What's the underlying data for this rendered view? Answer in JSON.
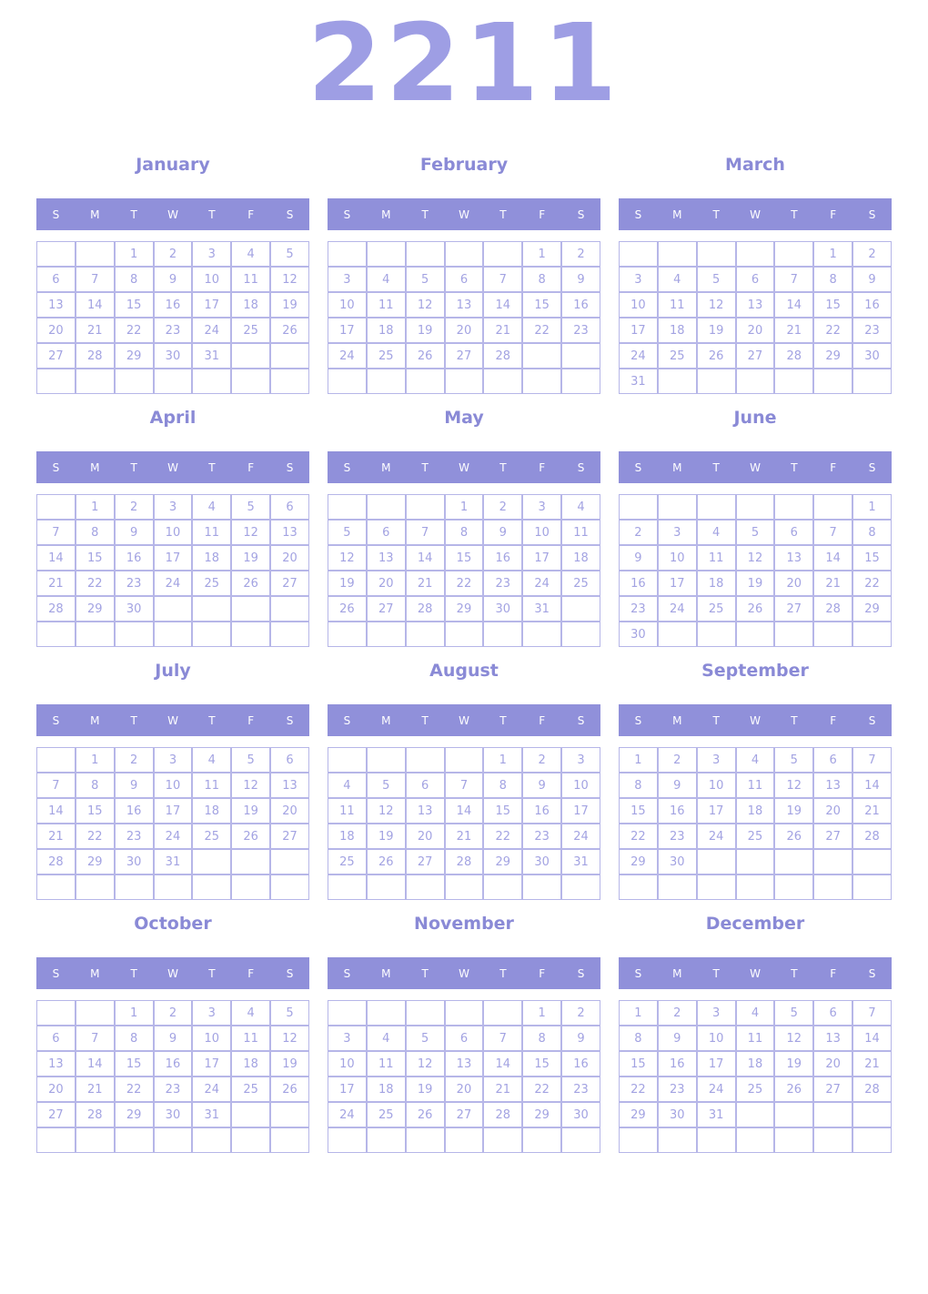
{
  "year_title": "2211",
  "colors": {
    "year_text": "#9e9ee4",
    "month_title": "#8a8ad6",
    "header_bg": "#9090da",
    "header_text": "#ffffff",
    "date_text": "#a3a3e2",
    "border": "#b6b6e8"
  },
  "day_headers": [
    "S",
    "M",
    "T",
    "W",
    "T",
    "F",
    "S"
  ],
  "months": [
    {
      "name": "January",
      "weeks": [
        [
          "",
          "",
          "1",
          "2",
          "3",
          "4",
          "5"
        ],
        [
          "6",
          "7",
          "8",
          "9",
          "10",
          "11",
          "12"
        ],
        [
          "13",
          "14",
          "15",
          "16",
          "17",
          "18",
          "19"
        ],
        [
          "20",
          "21",
          "22",
          "23",
          "24",
          "25",
          "26"
        ],
        [
          "27",
          "28",
          "29",
          "30",
          "31",
          "",
          ""
        ],
        [
          "",
          "",
          "",
          "",
          "",
          "",
          ""
        ]
      ]
    },
    {
      "name": "February",
      "weeks": [
        [
          "",
          "",
          "",
          "",
          "",
          "1",
          "2"
        ],
        [
          "3",
          "4",
          "5",
          "6",
          "7",
          "8",
          "9"
        ],
        [
          "10",
          "11",
          "12",
          "13",
          "14",
          "15",
          "16"
        ],
        [
          "17",
          "18",
          "19",
          "20",
          "21",
          "22",
          "23"
        ],
        [
          "24",
          "25",
          "26",
          "27",
          "28",
          "",
          ""
        ],
        [
          "",
          "",
          "",
          "",
          "",
          "",
          ""
        ]
      ]
    },
    {
      "name": "March",
      "weeks": [
        [
          "",
          "",
          "",
          "",
          "",
          "1",
          "2"
        ],
        [
          "3",
          "4",
          "5",
          "6",
          "7",
          "8",
          "9"
        ],
        [
          "10",
          "11",
          "12",
          "13",
          "14",
          "15",
          "16"
        ],
        [
          "17",
          "18",
          "19",
          "20",
          "21",
          "22",
          "23"
        ],
        [
          "24",
          "25",
          "26",
          "27",
          "28",
          "29",
          "30"
        ],
        [
          "31",
          "",
          "",
          "",
          "",
          "",
          ""
        ]
      ]
    },
    {
      "name": "April",
      "weeks": [
        [
          "",
          "1",
          "2",
          "3",
          "4",
          "5",
          "6"
        ],
        [
          "7",
          "8",
          "9",
          "10",
          "11",
          "12",
          "13"
        ],
        [
          "14",
          "15",
          "16",
          "17",
          "18",
          "19",
          "20"
        ],
        [
          "21",
          "22",
          "23",
          "24",
          "25",
          "26",
          "27"
        ],
        [
          "28",
          "29",
          "30",
          "",
          "",
          "",
          ""
        ],
        [
          "",
          "",
          "",
          "",
          "",
          "",
          ""
        ]
      ]
    },
    {
      "name": "May",
      "weeks": [
        [
          "",
          "",
          "",
          "1",
          "2",
          "3",
          "4"
        ],
        [
          "5",
          "6",
          "7",
          "8",
          "9",
          "10",
          "11"
        ],
        [
          "12",
          "13",
          "14",
          "15",
          "16",
          "17",
          "18"
        ],
        [
          "19",
          "20",
          "21",
          "22",
          "23",
          "24",
          "25"
        ],
        [
          "26",
          "27",
          "28",
          "29",
          "30",
          "31",
          ""
        ],
        [
          "",
          "",
          "",
          "",
          "",
          "",
          ""
        ]
      ]
    },
    {
      "name": "June",
      "weeks": [
        [
          "",
          "",
          "",
          "",
          "",
          "",
          "1"
        ],
        [
          "2",
          "3",
          "4",
          "5",
          "6",
          "7",
          "8"
        ],
        [
          "9",
          "10",
          "11",
          "12",
          "13",
          "14",
          "15"
        ],
        [
          "16",
          "17",
          "18",
          "19",
          "20",
          "21",
          "22"
        ],
        [
          "23",
          "24",
          "25",
          "26",
          "27",
          "28",
          "29"
        ],
        [
          "30",
          "",
          "",
          "",
          "",
          "",
          ""
        ]
      ]
    },
    {
      "name": "July",
      "weeks": [
        [
          "",
          "1",
          "2",
          "3",
          "4",
          "5",
          "6"
        ],
        [
          "7",
          "8",
          "9",
          "10",
          "11",
          "12",
          "13"
        ],
        [
          "14",
          "15",
          "16",
          "17",
          "18",
          "19",
          "20"
        ],
        [
          "21",
          "22",
          "23",
          "24",
          "25",
          "26",
          "27"
        ],
        [
          "28",
          "29",
          "30",
          "31",
          "",
          "",
          ""
        ],
        [
          "",
          "",
          "",
          "",
          "",
          "",
          ""
        ]
      ]
    },
    {
      "name": "August",
      "weeks": [
        [
          "",
          "",
          "",
          "",
          "1",
          "2",
          "3"
        ],
        [
          "4",
          "5",
          "6",
          "7",
          "8",
          "9",
          "10"
        ],
        [
          "11",
          "12",
          "13",
          "14",
          "15",
          "16",
          "17"
        ],
        [
          "18",
          "19",
          "20",
          "21",
          "22",
          "23",
          "24"
        ],
        [
          "25",
          "26",
          "27",
          "28",
          "29",
          "30",
          "31"
        ],
        [
          "",
          "",
          "",
          "",
          "",
          "",
          ""
        ]
      ]
    },
    {
      "name": "September",
      "weeks": [
        [
          "1",
          "2",
          "3",
          "4",
          "5",
          "6",
          "7"
        ],
        [
          "8",
          "9",
          "10",
          "11",
          "12",
          "13",
          "14"
        ],
        [
          "15",
          "16",
          "17",
          "18",
          "19",
          "20",
          "21"
        ],
        [
          "22",
          "23",
          "24",
          "25",
          "26",
          "27",
          "28"
        ],
        [
          "29",
          "30",
          "",
          "",
          "",
          "",
          ""
        ],
        [
          "",
          "",
          "",
          "",
          "",
          "",
          ""
        ]
      ]
    },
    {
      "name": "October",
      "weeks": [
        [
          "",
          "",
          "1",
          "2",
          "3",
          "4",
          "5"
        ],
        [
          "6",
          "7",
          "8",
          "9",
          "10",
          "11",
          "12"
        ],
        [
          "13",
          "14",
          "15",
          "16",
          "17",
          "18",
          "19"
        ],
        [
          "20",
          "21",
          "22",
          "23",
          "24",
          "25",
          "26"
        ],
        [
          "27",
          "28",
          "29",
          "30",
          "31",
          "",
          ""
        ],
        [
          "",
          "",
          "",
          "",
          "",
          "",
          ""
        ]
      ]
    },
    {
      "name": "November",
      "weeks": [
        [
          "",
          "",
          "",
          "",
          "",
          "1",
          "2"
        ],
        [
          "3",
          "4",
          "5",
          "6",
          "7",
          "8",
          "9"
        ],
        [
          "10",
          "11",
          "12",
          "13",
          "14",
          "15",
          "16"
        ],
        [
          "17",
          "18",
          "19",
          "20",
          "21",
          "22",
          "23"
        ],
        [
          "24",
          "25",
          "26",
          "27",
          "28",
          "29",
          "30"
        ],
        [
          "",
          "",
          "",
          "",
          "",
          "",
          ""
        ]
      ]
    },
    {
      "name": "December",
      "weeks": [
        [
          "1",
          "2",
          "3",
          "4",
          "5",
          "6",
          "7"
        ],
        [
          "8",
          "9",
          "10",
          "11",
          "12",
          "13",
          "14"
        ],
        [
          "15",
          "16",
          "17",
          "18",
          "19",
          "20",
          "21"
        ],
        [
          "22",
          "23",
          "24",
          "25",
          "26",
          "27",
          "28"
        ],
        [
          "29",
          "30",
          "31",
          "",
          "",
          "",
          ""
        ],
        [
          "",
          "",
          "",
          "",
          "",
          "",
          ""
        ]
      ]
    }
  ]
}
